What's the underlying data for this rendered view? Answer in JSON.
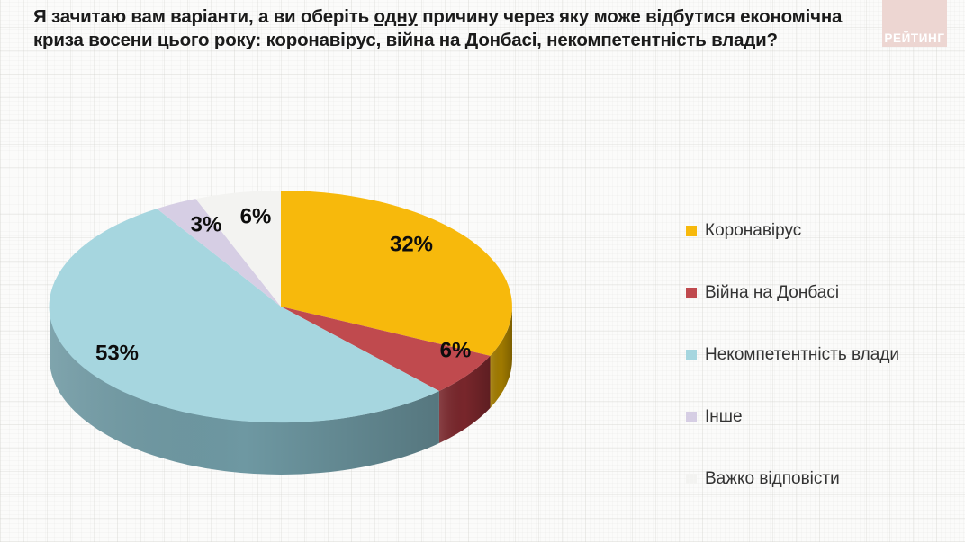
{
  "page": {
    "background": "#fbfbfa",
    "grid_line_color": "#e4e4e0"
  },
  "header": {
    "title_part1": "Я зачитаю вам варіанти, а ви оберіть ",
    "title_underlined": "одну",
    "title_part2": " причину через яку може відбутися економічна криза восени цього року: коронавірус, війна на Донбасі, некомпетентність влади?"
  },
  "logo": {
    "text": "РЕЙТИНГ",
    "background": "#edd6d2",
    "text_color": "#ffffff"
  },
  "chart_data": {
    "type": "pie",
    "style": "3d",
    "title": "Я зачитаю вам варіанти, а ви оберіть одну причину через яку може відбутися економічна криза восени цього року: коронавірус, війна на Донбасі, некомпетентність влади?",
    "start_angle_deg": 0,
    "direction": "clockwise",
    "legend_position": "right",
    "total": 100,
    "series": [
      {
        "label": "Коронавірус",
        "value": 32,
        "percent_label": "32%",
        "color": "#F7B90C",
        "side_color": "#A07A00"
      },
      {
        "label": "Війна на Донбасі",
        "value": 6,
        "percent_label": "6%",
        "color": "#C04A4E",
        "side_color": "#78262B"
      },
      {
        "label": "Некомпетентність влади",
        "value": 53,
        "percent_label": "53%",
        "color": "#A6D6DF",
        "side_color": "#6E98A2"
      },
      {
        "label": "Інше",
        "value": 3,
        "percent_label": "3%",
        "color": "#D6CEE4",
        "side_color": "#A79BC2"
      },
      {
        "label": "Важко відповісти",
        "value": 6,
        "percent_label": "6%",
        "color": "#F3F3F1",
        "side_color": "#C6C6C2"
      }
    ]
  }
}
